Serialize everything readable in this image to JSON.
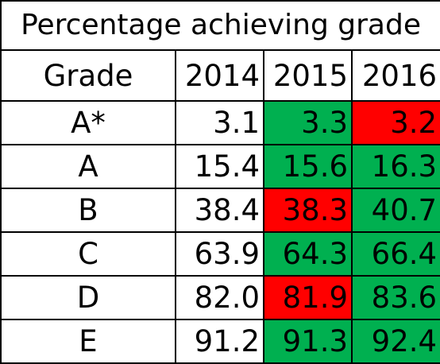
{
  "title": "Percentage achieving grade",
  "header": {
    "grade_label": "Grade",
    "years": [
      "2014",
      "2015",
      "2016"
    ]
  },
  "colors": {
    "increase": "#00b050",
    "decrease": "#ff0000",
    "neutral": "#ffffff",
    "border": "#000000"
  },
  "rows": [
    {
      "grade": "A*",
      "values": [
        "3.1",
        "3.3",
        "3.2"
      ],
      "status": [
        "none",
        "increase",
        "decrease"
      ]
    },
    {
      "grade": "A",
      "values": [
        "15.4",
        "15.6",
        "16.3"
      ],
      "status": [
        "none",
        "increase",
        "increase"
      ]
    },
    {
      "grade": "B",
      "values": [
        "38.4",
        "38.3",
        "40.7"
      ],
      "status": [
        "none",
        "decrease",
        "increase"
      ]
    },
    {
      "grade": "C",
      "values": [
        "63.9",
        "64.3",
        "66.4"
      ],
      "status": [
        "none",
        "increase",
        "increase"
      ]
    },
    {
      "grade": "D",
      "values": [
        "82.0",
        "81.9",
        "83.6"
      ],
      "status": [
        "none",
        "decrease",
        "increase"
      ]
    },
    {
      "grade": "E",
      "values": [
        "91.2",
        "91.3",
        "92.4"
      ],
      "status": [
        "none",
        "increase",
        "increase"
      ]
    }
  ]
}
